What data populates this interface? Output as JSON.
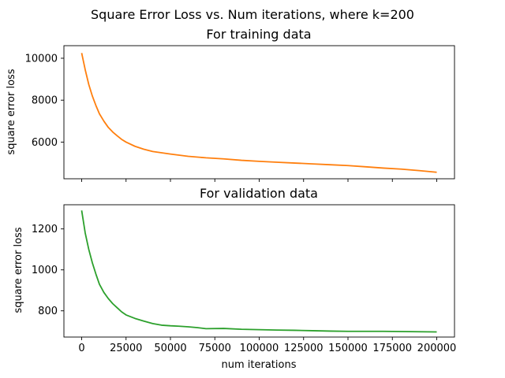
{
  "figure": {
    "suptitle": "Square Error Loss vs. Num iterations, where k=200"
  },
  "chart_data": [
    {
      "type": "line",
      "title": "For training data",
      "xlabel": "",
      "ylabel": "square error loss",
      "xlim": [
        -10000,
        210000
      ],
      "ylim": [
        4250,
        10600
      ],
      "xticks": [
        0,
        25000,
        50000,
        75000,
        100000,
        125000,
        150000,
        175000,
        200000
      ],
      "xtick_labels_visible": false,
      "yticks": [
        6000,
        8000,
        10000
      ],
      "ytick_labels": [
        "6000",
        "8000",
        "10000"
      ],
      "grid": false,
      "series": [
        {
          "color": "#ff7f0e",
          "x": [
            0,
            2000,
            4000,
            6000,
            8000,
            10000,
            12500,
            15000,
            17500,
            20000,
            22500,
            25000,
            30000,
            35000,
            40000,
            50000,
            60000,
            70000,
            80000,
            90000,
            100000,
            110000,
            120000,
            130000,
            140000,
            150000,
            160000,
            170000,
            180000,
            190000,
            200000
          ],
          "y": [
            10250,
            9450,
            8750,
            8200,
            7750,
            7350,
            7000,
            6700,
            6480,
            6300,
            6130,
            6000,
            5800,
            5660,
            5550,
            5430,
            5320,
            5250,
            5200,
            5130,
            5080,
            5040,
            5000,
            4960,
            4920,
            4880,
            4820,
            4760,
            4710,
            4640,
            4560
          ]
        }
      ]
    },
    {
      "type": "line",
      "title": "For validation data",
      "xlabel": "num iterations",
      "ylabel": "square error loss",
      "xlim": [
        -10000,
        210000
      ],
      "ylim": [
        672,
        1318
      ],
      "xticks": [
        0,
        25000,
        50000,
        75000,
        100000,
        125000,
        150000,
        175000,
        200000
      ],
      "xtick_labels": [
        "0",
        "25000",
        "50000",
        "75000",
        "100000",
        "125000",
        "150000",
        "175000",
        "200000"
      ],
      "yticks": [
        800,
        1000,
        1200
      ],
      "ytick_labels": [
        "800",
        "1000",
        "1200"
      ],
      "grid": false,
      "series": [
        {
          "color": "#2ca02c",
          "x": [
            0,
            2000,
            4000,
            6000,
            8000,
            10000,
            12500,
            15000,
            17500,
            20000,
            22500,
            25000,
            30000,
            35000,
            40000,
            45000,
            50000,
            55000,
            60000,
            65000,
            70000,
            80000,
            90000,
            100000,
            110000,
            120000,
            130000,
            140000,
            150000,
            160000,
            170000,
            180000,
            190000,
            200000
          ],
          "y": [
            1290,
            1180,
            1100,
            1035,
            980,
            930,
            890,
            860,
            835,
            815,
            795,
            780,
            763,
            750,
            738,
            730,
            727,
            725,
            722,
            718,
            713,
            714,
            710,
            708,
            706,
            705,
            703,
            701,
            700,
            700,
            700,
            699,
            698,
            697
          ]
        }
      ]
    }
  ]
}
